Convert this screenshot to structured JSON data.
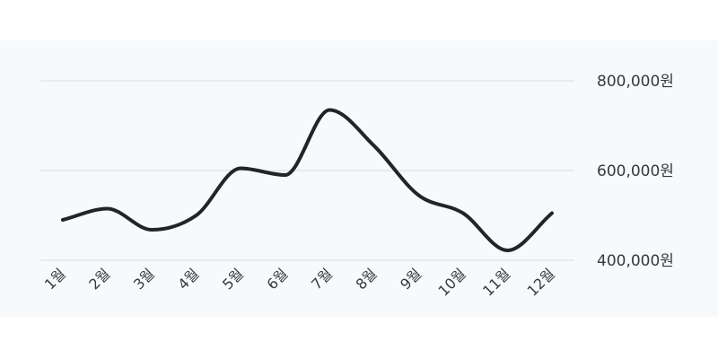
{
  "colors": {
    "background": "#f8f9fa",
    "grid": "#dee2e6",
    "line": "#212529",
    "text": "#343a40"
  },
  "chart_data": {
    "type": "line",
    "title": "",
    "xlabel": "",
    "ylabel": "",
    "categories": [
      "1월",
      "2월",
      "3월",
      "4월",
      "5월",
      "6월",
      "7월",
      "8월",
      "9월",
      "10월",
      "11월",
      "12월"
    ],
    "series": [
      {
        "values": [
          490000,
          515000,
          468000,
          500000,
          605000,
          590000,
          735000,
          655000,
          545000,
          505000,
          422000,
          505000
        ]
      }
    ],
    "ylim": [
      400000,
      800000
    ],
    "y_ticks": [
      400000,
      600000,
      800000
    ],
    "y_tick_labels": [
      "400,000원",
      "600,000원",
      "800,000원"
    ],
    "y_axis_position": "right",
    "grid": true,
    "legend": "none"
  }
}
